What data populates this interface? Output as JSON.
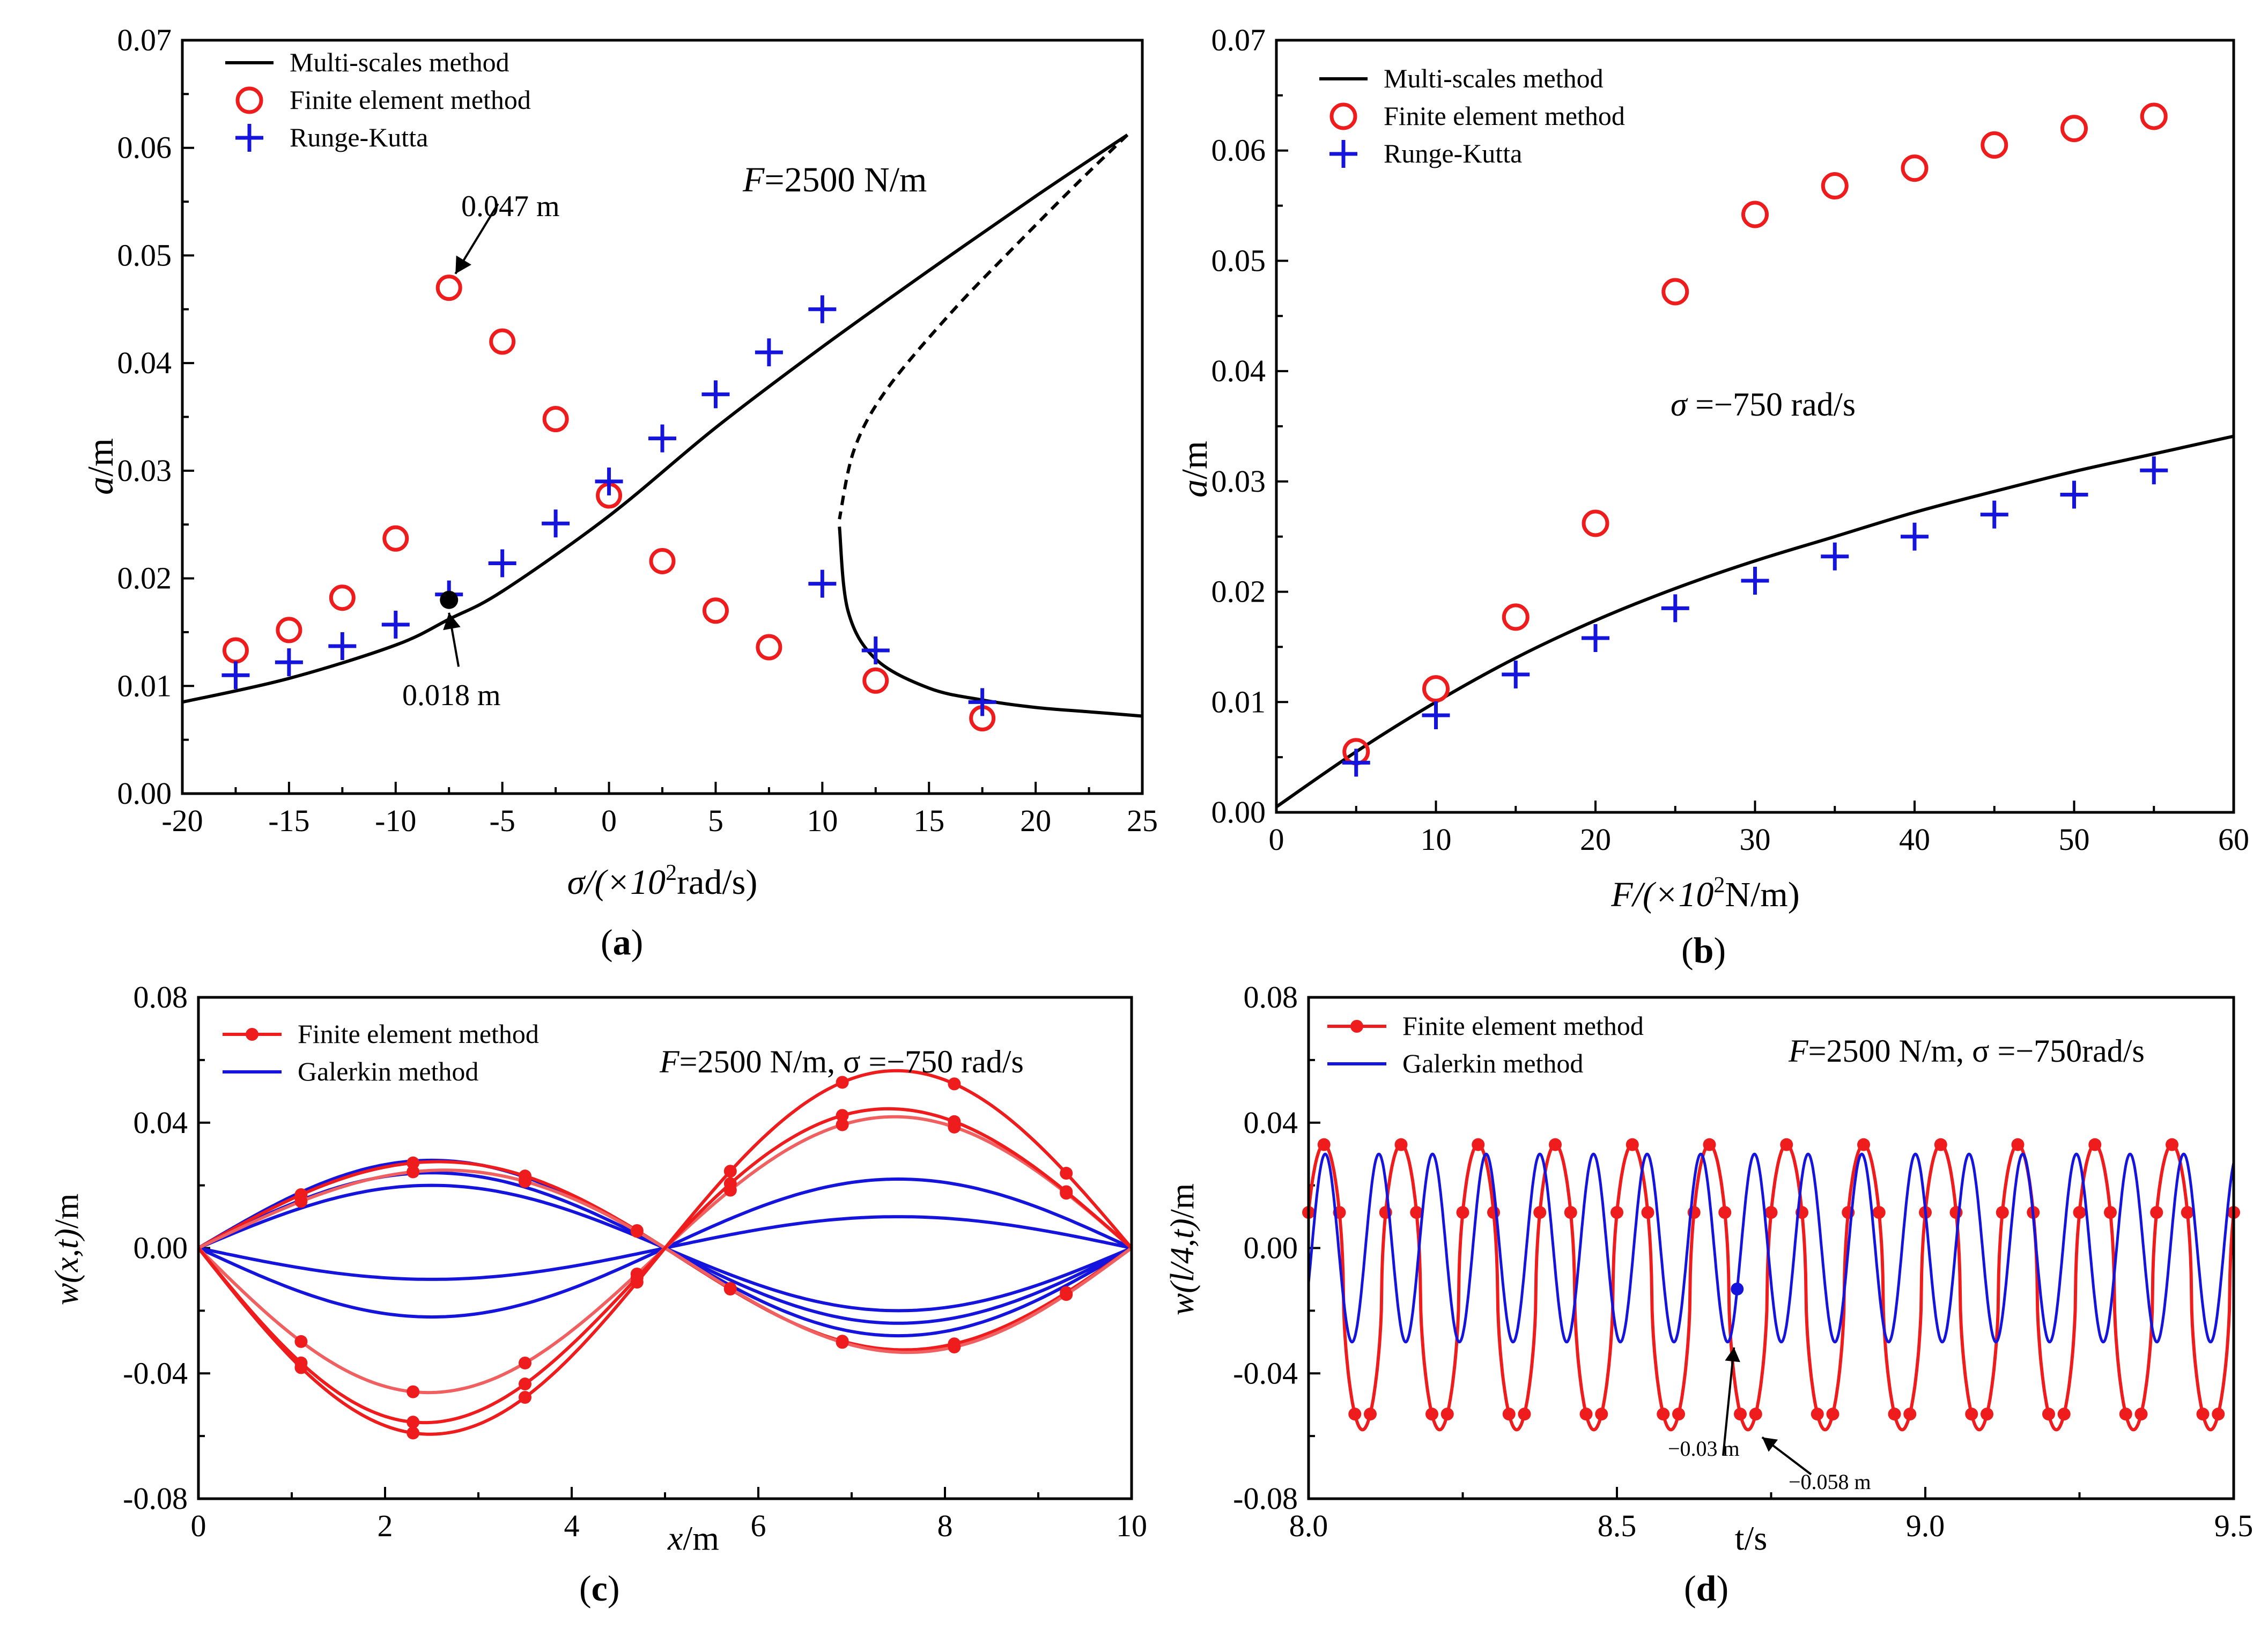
{
  "colors": {
    "black": "#000000",
    "red": "#ee1c1c",
    "pink": "#f06060",
    "blue": "#1414dc"
  },
  "chart_data": [
    {
      "id": "a",
      "type": "line",
      "caption": "a",
      "xlabel_prefix": "σ/(×10",
      "xlabel_sup": "2",
      "xlabel_suffix": "rad/s)",
      "ylabel": "a",
      "ylabel_unit": "/m",
      "xlim": [
        -20,
        25
      ],
      "ylim": [
        0,
        0.07
      ],
      "xticks": [
        -20,
        -15,
        -10,
        -5,
        0,
        5,
        10,
        15,
        20,
        25
      ],
      "xtick_labels": [
        "-20",
        "-15",
        "-10",
        "-5",
        "0",
        "5",
        "10",
        "15",
        "20",
        "25"
      ],
      "yticks": [
        0,
        0.01,
        0.02,
        0.03,
        0.04,
        0.05,
        0.06,
        0.07
      ],
      "ytick_labels": [
        "0.00",
        "0.01",
        "0.02",
        "0.03",
        "0.04",
        "0.05",
        "0.06",
        "0.07"
      ],
      "legend": [
        {
          "label": "Multi-scales method",
          "marker": "line",
          "color": "#000000"
        },
        {
          "label": "Finite element method",
          "marker": "circle",
          "color": "#ee1c1c"
        },
        {
          "label": "Runge-Kutta",
          "marker": "plus",
          "color": "#1414dc"
        }
      ],
      "annotation_main": {
        "prefix": "F",
        "text": "=2500 N/m"
      },
      "callouts": [
        {
          "text": "0.047 m",
          "target": [
            -7.5,
            0.047
          ],
          "label_at": [
            -5.2,
            0.0555
          ]
        },
        {
          "text": "0.018 m",
          "target": [
            -7.5,
            0.018
          ],
          "label_at": [
            -7.0,
            0.0088
          ]
        }
      ],
      "series": [
        {
          "name": "Multi-scales method (stable branch)",
          "style": "solid",
          "x": [
            -20,
            -15,
            -10,
            -7.5,
            -5,
            0,
            5,
            10,
            15,
            20,
            24.3
          ],
          "y": [
            0.0085,
            0.0107,
            0.0138,
            0.0162,
            0.0188,
            0.0258,
            0.034,
            0.0415,
            0.0486,
            0.0555,
            0.0612
          ]
        },
        {
          "name": "Multi-scales method (unstable branch)",
          "style": "dashed",
          "x": [
            24.3,
            22,
            19,
            16,
            13,
            11.5,
            10.8
          ],
          "y": [
            0.0612,
            0.0568,
            0.0508,
            0.0446,
            0.0375,
            0.032,
            0.0255
          ]
        },
        {
          "name": "Multi-scales method (lower branch)",
          "style": "solid",
          "x": [
            10.8,
            11.2,
            12.5,
            15,
            17.5,
            20,
            22.5,
            25
          ],
          "y": [
            0.0248,
            0.017,
            0.0125,
            0.0098,
            0.0087,
            0.008,
            0.0076,
            0.0072
          ]
        },
        {
          "name": "Finite element method",
          "marker": "circle",
          "x": [
            -17.5,
            -15,
            -12.5,
            -10,
            -7.5,
            -5,
            -2.5,
            0,
            2.5,
            5,
            7.5,
            12.5,
            17.5
          ],
          "y": [
            0.0133,
            0.0152,
            0.0182,
            0.0237,
            0.047,
            0.042,
            0.0348,
            0.0277,
            0.0216,
            0.017,
            0.0136,
            0.0105,
            0.007
          ]
        },
        {
          "name": "Runge-Kutta",
          "marker": "plus",
          "x": [
            -17.5,
            -15,
            -12.5,
            -10,
            -7.5,
            -5,
            -2.5,
            0,
            2.5,
            5,
            7.5,
            10,
            10,
            12.5,
            17.5
          ],
          "y": [
            0.011,
            0.0122,
            0.0137,
            0.0157,
            0.0185,
            0.0214,
            0.0251,
            0.029,
            0.033,
            0.0371,
            0.041,
            0.045,
            0.0195,
            0.0133,
            0.0085
          ]
        }
      ]
    },
    {
      "id": "b",
      "type": "line",
      "caption": "b",
      "xlabel_prefix": "F/(×10",
      "xlabel_sup": "2",
      "xlabel_suffix": "N/m)",
      "ylabel": "a",
      "ylabel_unit": "/m",
      "xlim": [
        0,
        60
      ],
      "ylim": [
        0,
        0.07
      ],
      "xticks": [
        0,
        10,
        20,
        30,
        40,
        50,
        60
      ],
      "xtick_labels": [
        "0",
        "10",
        "20",
        "30",
        "40",
        "50",
        "60"
      ],
      "yticks": [
        0,
        0.01,
        0.02,
        0.03,
        0.04,
        0.05,
        0.06,
        0.07
      ],
      "ytick_labels": [
        "0.00",
        "0.01",
        "0.02",
        "0.03",
        "0.04",
        "0.05",
        "0.06",
        "0.07"
      ],
      "legend": [
        {
          "label": "Multi-scales method",
          "marker": "line",
          "color": "#000000"
        },
        {
          "label": "Finite element method",
          "marker": "circle",
          "color": "#ee1c1c"
        },
        {
          "label": "Runge-Kutta",
          "marker": "plus",
          "color": "#1414dc"
        }
      ],
      "annotation_main": {
        "prefix": "σ",
        "text": " =−750 rad/s"
      },
      "series": [
        {
          "name": "Multi-scales method",
          "style": "solid",
          "x": [
            0,
            5,
            10,
            15,
            20,
            25,
            30,
            35,
            40,
            45,
            50,
            55,
            60
          ],
          "y": [
            0.0005,
            0.0055,
            0.01,
            0.014,
            0.0174,
            0.0203,
            0.0228,
            0.025,
            0.0272,
            0.0291,
            0.0309,
            0.0325,
            0.0341
          ]
        },
        {
          "name": "Finite element method",
          "marker": "circle",
          "x": [
            5,
            10,
            15,
            20,
            25,
            30,
            35,
            40,
            45,
            50,
            55
          ],
          "y": [
            0.0055,
            0.0112,
            0.0177,
            0.0262,
            0.0472,
            0.0542,
            0.0568,
            0.0584,
            0.0605,
            0.062,
            0.0631
          ]
        },
        {
          "name": "Runge-Kutta",
          "marker": "plus",
          "x": [
            5,
            10,
            15,
            20,
            25,
            30,
            35,
            40,
            45,
            50,
            55
          ],
          "y": [
            0.0045,
            0.0088,
            0.0125,
            0.0158,
            0.0185,
            0.021,
            0.0232,
            0.025,
            0.027,
            0.0288,
            0.031
          ]
        }
      ]
    },
    {
      "id": "c",
      "type": "line",
      "caption": "c",
      "xlabel_prefix": "x",
      "xlabel_sup": "",
      "xlabel_suffix": "/m",
      "ylabel": "w(x,t)",
      "ylabel_unit": "/m",
      "xlim": [
        0,
        10
      ],
      "ylim": [
        -0.08,
        0.08
      ],
      "xticks": [
        0,
        2,
        4,
        6,
        8,
        10
      ],
      "xtick_labels": [
        "0",
        "2",
        "4",
        "6",
        "8",
        "10"
      ],
      "yticks": [
        -0.08,
        -0.04,
        0,
        0.04,
        0.08
      ],
      "ytick_labels": [
        "-0.08",
        "-0.04",
        "0.00",
        "0.04",
        "0.08"
      ],
      "legend": [
        {
          "label": "Finite element method",
          "marker": "line-dot",
          "color": "#ee1c1c"
        },
        {
          "label": "Galerkin method",
          "marker": "line",
          "color": "#1414dc"
        }
      ],
      "annotation_main": {
        "prefix": "F",
        "text": "=2500 N/m, σ =−750 rad/s"
      },
      "profile_form": "w(x) = A·sin(π x/5) + B·sin(π x/5)·cos(π x/10)",
      "marker_x": [
        1.1,
        2.3,
        3.5,
        4.7,
        5.7,
        6.9,
        8.1,
        9.3
      ],
      "series": [
        {
          "name": "FEM 1",
          "color": "#ee1c1c",
          "markers": true,
          "A": 0.03,
          "B": -0.0035
        },
        {
          "name": "FEM 2",
          "color": "#f06060",
          "markers": true,
          "A": 0.029,
          "B": -0.006
        },
        {
          "name": "FEM 3",
          "color": "#f06060",
          "markers": true,
          "A": -0.044,
          "B": -0.003
        },
        {
          "name": "FEM 4",
          "color": "#ee1c1c",
          "markers": true,
          "A": -0.05,
          "B": -0.008
        },
        {
          "name": "FEM 5",
          "color": "#ee1c1c",
          "markers": true,
          "A": -0.058,
          "B": -0.002
        },
        {
          "name": "Galerkin 1",
          "color": "#1414dc",
          "markers": false,
          "A": 0.028,
          "B": 0
        },
        {
          "name": "Galerkin 2",
          "color": "#1414dc",
          "markers": false,
          "A": 0.024,
          "B": 0
        },
        {
          "name": "Galerkin 3",
          "color": "#1414dc",
          "markers": false,
          "A": -0.01,
          "B": 0
        },
        {
          "name": "Galerkin 4",
          "color": "#1414dc",
          "markers": false,
          "A": 0.02,
          "B": 0
        },
        {
          "name": "Galerkin 5",
          "color": "#1414dc",
          "markers": false,
          "A": -0.022,
          "B": 0
        }
      ]
    },
    {
      "id": "d",
      "type": "line",
      "caption": "d",
      "xlabel_prefix": "t",
      "xlabel_sup": "",
      "xlabel_suffix": "/s",
      "ylabel": "w(l/4,t)",
      "ylabel_unit": "/m",
      "xlim": [
        8.0,
        9.5
      ],
      "ylim": [
        -0.08,
        0.08
      ],
      "xticks": [
        8.0,
        8.5,
        9.0,
        9.5
      ],
      "xtick_labels": [
        "8.0",
        "8.5",
        "9.0",
        "9.5"
      ],
      "yticks": [
        -0.08,
        -0.04,
        0,
        0.04,
        0.08
      ],
      "ytick_labels": [
        "-0.08",
        "-0.04",
        "0.00",
        "0.04",
        "0.08"
      ],
      "legend": [
        {
          "label": "Finite element method",
          "marker": "line-dot",
          "color": "#ee1c1c"
        },
        {
          "label": "Galerkin method",
          "marker": "line",
          "color": "#1414dc"
        }
      ],
      "annotation_main": {
        "prefix": "F",
        "text": "=2500 N/m, σ =−750rad/s"
      },
      "callouts": [
        {
          "text": "−0.03 m",
          "target": [
            8.695,
            -0.029
          ],
          "label_at": [
            8.62,
            -0.068
          ]
        },
        {
          "text": "−0.058 m",
          "target": [
            8.725,
            -0.058
          ],
          "label_at": [
            8.78,
            -0.076
          ]
        }
      ],
      "series": [
        {
          "name": "Finite element method",
          "color": "#ee1c1c",
          "period_s": 0.125,
          "max": 0.033,
          "min": -0.058,
          "first_peak_t": 8.025,
          "markers_per_period": 5
        },
        {
          "name": "Galerkin method",
          "color": "#1414dc",
          "period_s": 0.087,
          "amplitude": 0.03,
          "first_peak_t": 8.027,
          "highlight_t": 8.695
        }
      ]
    }
  ]
}
